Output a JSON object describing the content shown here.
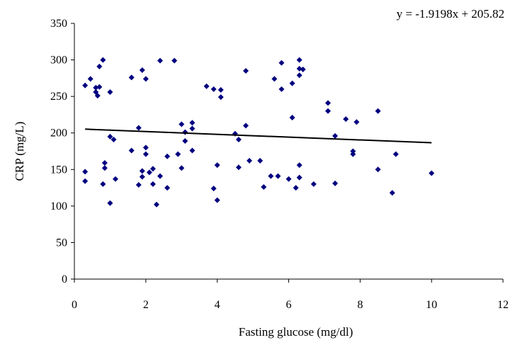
{
  "chart_data": {
    "type": "scatter",
    "xlabel": "Fasting glucose (mg/dl)",
    "ylabel": "CRP (mg/L)",
    "xlim": [
      0,
      12
    ],
    "ylim": [
      0,
      350
    ],
    "x_ticks": [
      "0",
      "2",
      "4",
      "6",
      "8",
      "10",
      "12"
    ],
    "y_ticks": [
      "0",
      "50",
      "100",
      "150",
      "200",
      "250",
      "300",
      "350"
    ],
    "grid": false,
    "legend": "none",
    "marker_color": "#000080",
    "trendline": {
      "equation": "y = -1.9198x + 205.82",
      "slope": -1.9198,
      "intercept": 205.82,
      "x_range": [
        0.3,
        10
      ]
    },
    "points": [
      [
        0.3,
        265
      ],
      [
        0.3,
        147
      ],
      [
        0.3,
        134
      ],
      [
        0.45,
        274
      ],
      [
        0.6,
        256
      ],
      [
        0.6,
        262
      ],
      [
        0.65,
        251
      ],
      [
        0.7,
        291
      ],
      [
        0.7,
        263
      ],
      [
        0.8,
        300
      ],
      [
        0.8,
        130
      ],
      [
        0.85,
        159
      ],
      [
        0.85,
        152
      ],
      [
        1.0,
        256
      ],
      [
        1.0,
        195
      ],
      [
        1.0,
        104
      ],
      [
        1.1,
        191
      ],
      [
        1.15,
        137
      ],
      [
        1.6,
        276
      ],
      [
        1.6,
        176
      ],
      [
        1.8,
        207
      ],
      [
        1.8,
        129
      ],
      [
        1.9,
        286
      ],
      [
        1.9,
        148
      ],
      [
        1.9,
        140
      ],
      [
        2.0,
        274
      ],
      [
        2.0,
        180
      ],
      [
        2.0,
        171
      ],
      [
        2.1,
        146
      ],
      [
        2.2,
        151
      ],
      [
        2.2,
        130
      ],
      [
        2.3,
        102
      ],
      [
        2.4,
        299
      ],
      [
        2.4,
        141
      ],
      [
        2.6,
        168
      ],
      [
        2.6,
        125
      ],
      [
        2.8,
        299
      ],
      [
        2.9,
        171
      ],
      [
        3.0,
        212
      ],
      [
        3.0,
        152
      ],
      [
        3.1,
        201
      ],
      [
        3.1,
        189
      ],
      [
        3.3,
        214
      ],
      [
        3.3,
        206
      ],
      [
        3.3,
        176
      ],
      [
        3.7,
        264
      ],
      [
        3.9,
        260
      ],
      [
        3.9,
        124
      ],
      [
        4.0,
        156
      ],
      [
        4.0,
        108
      ],
      [
        4.1,
        259
      ],
      [
        4.1,
        249
      ],
      [
        4.5,
        199
      ],
      [
        4.6,
        191
      ],
      [
        4.6,
        153
      ],
      [
        4.8,
        285
      ],
      [
        4.8,
        210
      ],
      [
        4.9,
        162
      ],
      [
        5.2,
        162
      ],
      [
        5.3,
        126
      ],
      [
        5.5,
        141
      ],
      [
        5.6,
        274
      ],
      [
        5.7,
        141
      ],
      [
        5.8,
        296
      ],
      [
        5.8,
        260
      ],
      [
        6.0,
        137
      ],
      [
        6.1,
        268
      ],
      [
        6.1,
        221
      ],
      [
        6.2,
        125
      ],
      [
        6.3,
        300
      ],
      [
        6.3,
        288
      ],
      [
        6.3,
        279
      ],
      [
        6.3,
        156
      ],
      [
        6.3,
        139
      ],
      [
        6.4,
        287
      ],
      [
        6.7,
        130
      ],
      [
        7.1,
        241
      ],
      [
        7.1,
        230
      ],
      [
        7.3,
        196
      ],
      [
        7.3,
        131
      ],
      [
        7.6,
        219
      ],
      [
        7.8,
        175
      ],
      [
        7.8,
        171
      ],
      [
        7.9,
        215
      ],
      [
        8.5,
        230
      ],
      [
        8.5,
        150
      ],
      [
        8.9,
        118
      ],
      [
        9.0,
        171
      ],
      [
        10.0,
        145
      ]
    ]
  }
}
